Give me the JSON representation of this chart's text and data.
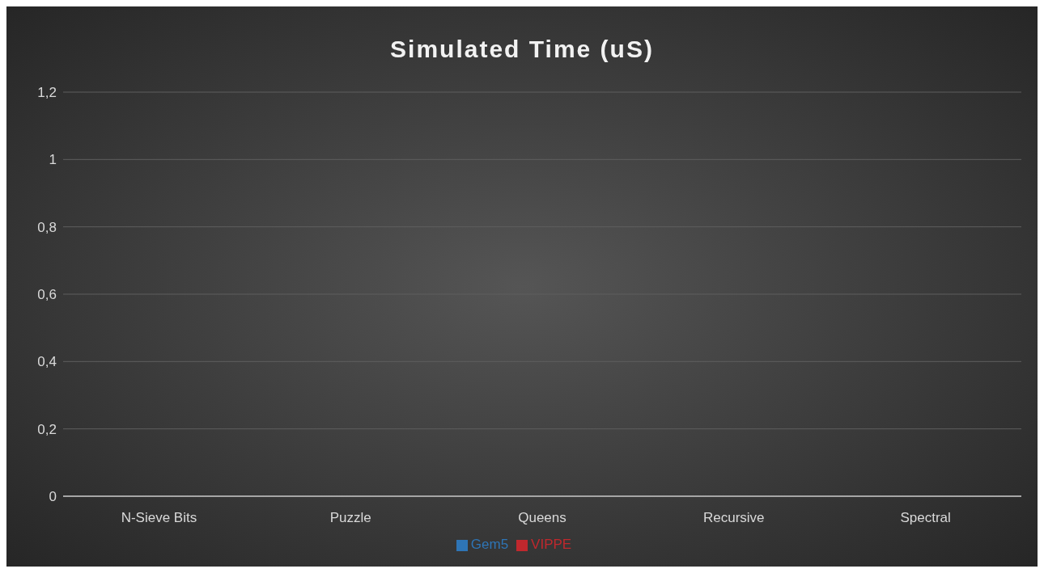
{
  "chart_data": {
    "type": "bar",
    "title": "Simulated Time (uS)",
    "categories": [
      "N-Sieve Bits",
      "Puzzle",
      "Queens",
      "Recursive",
      "Spectral"
    ],
    "series": [
      {
        "name": "Gem5",
        "color": "#2e75b6",
        "values": [
          0,
          0,
          0,
          0,
          0
        ]
      },
      {
        "name": "VIPPE",
        "color": "#c0282d",
        "values": [
          0,
          0,
          0,
          0,
          0
        ]
      }
    ],
    "ylim": [
      0,
      1.2
    ],
    "yticks": [
      {
        "value": 0,
        "label": "0"
      },
      {
        "value": 0.2,
        "label": "0,2"
      },
      {
        "value": 0.4,
        "label": "0,4"
      },
      {
        "value": 0.6,
        "label": "0,6"
      },
      {
        "value": 0.8,
        "label": "0,8"
      },
      {
        "value": 1,
        "label": "1"
      },
      {
        "value": 1.2,
        "label": "1,2"
      }
    ],
    "grid": "y",
    "legend": "bottom"
  }
}
